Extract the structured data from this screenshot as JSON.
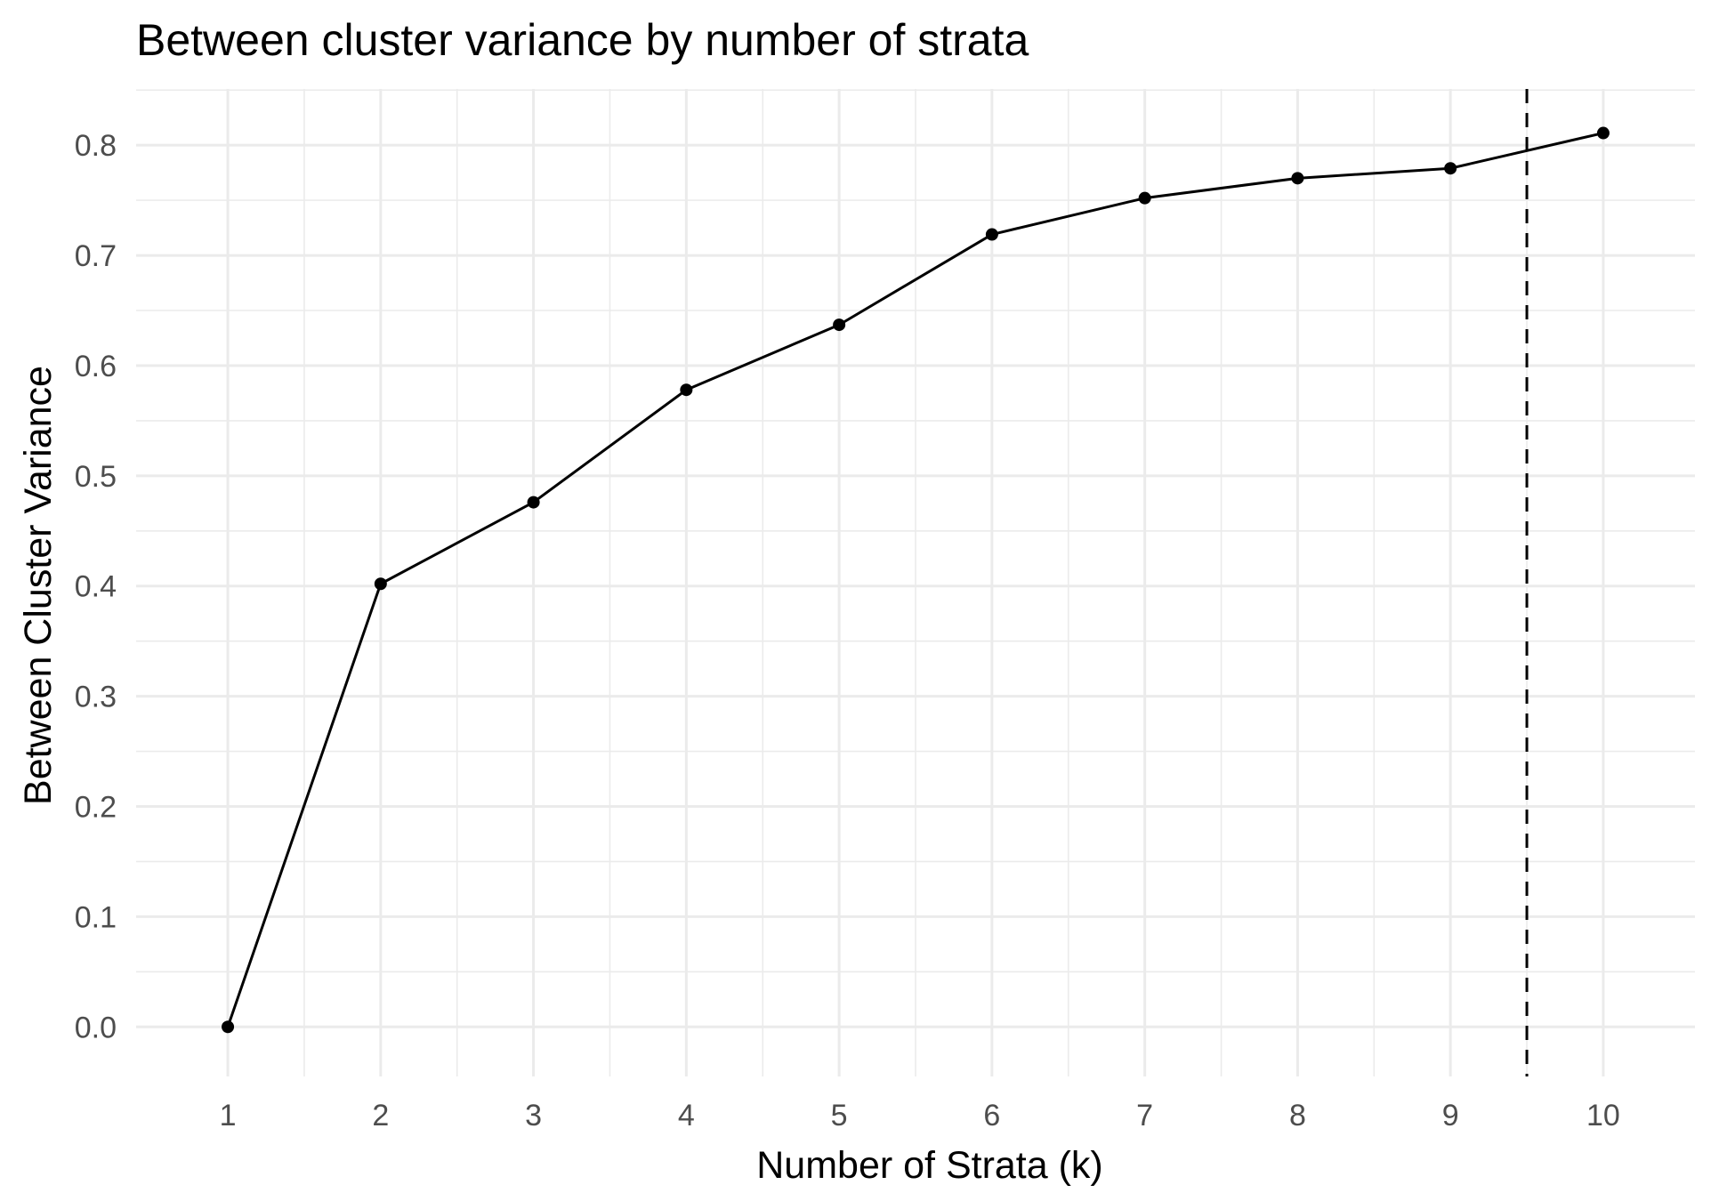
{
  "chart_data": {
    "type": "line",
    "title": "Between cluster variance by number of strata",
    "xlabel": "Number of Strata (k)",
    "ylabel": "Between Cluster Variance",
    "x": [
      1,
      2,
      3,
      4,
      5,
      6,
      7,
      8,
      9,
      10
    ],
    "series": [
      {
        "values": [
          0.0,
          0.402,
          0.476,
          0.578,
          0.637,
          0.719,
          0.752,
          0.77,
          0.779,
          0.811
        ],
        "color": "#000000",
        "markers": true
      }
    ],
    "reference_lines": [
      {
        "orientation": "vertical",
        "x": 9.5,
        "style": "dashed",
        "color": "#000000"
      }
    ],
    "xlim": [
      0.4,
      10.6
    ],
    "ylim": [
      -0.045,
      0.851
    ],
    "x_ticks": [
      1,
      2,
      3,
      4,
      5,
      6,
      7,
      8,
      9,
      10
    ],
    "x_tick_labels": [
      "1",
      "2",
      "3",
      "4",
      "5",
      "6",
      "7",
      "8",
      "9",
      "10"
    ],
    "y_ticks": [
      0.0,
      0.1,
      0.2,
      0.3,
      0.4,
      0.5,
      0.6,
      0.7,
      0.8
    ],
    "y_tick_labels": [
      "0.0",
      "0.1",
      "0.2",
      "0.3",
      "0.4",
      "0.5",
      "0.6",
      "0.7",
      "0.8"
    ],
    "grid": true,
    "legend": "none",
    "background_color": "#ffffff",
    "grid_color": "#ebebeb",
    "tick_label_color": "#4d4d4d"
  }
}
